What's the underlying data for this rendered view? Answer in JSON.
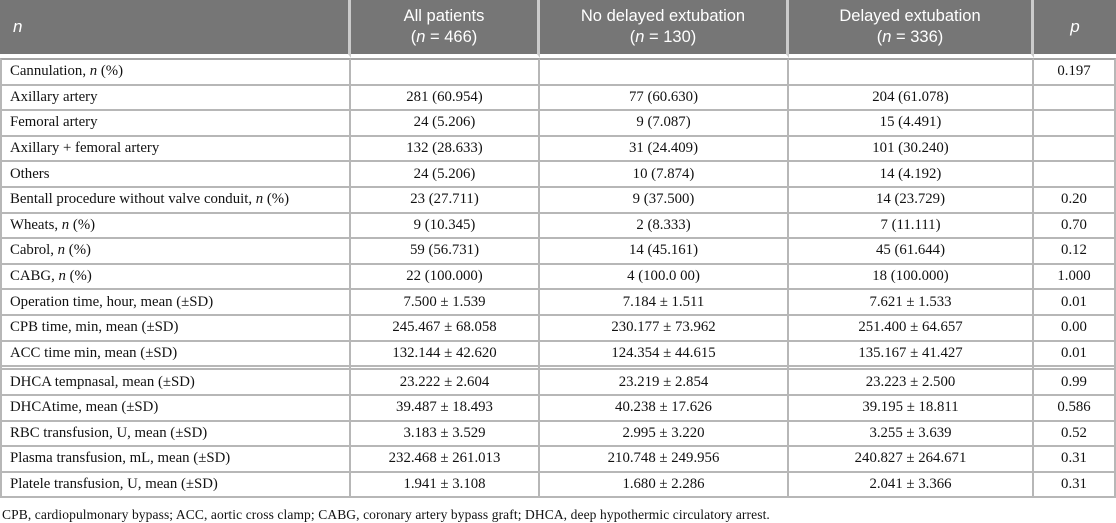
{
  "colors": {
    "header_bg": "#767676",
    "header_text": "#ffffff",
    "grid_line": "#b7b7b7"
  },
  "table": {
    "header": {
      "col_n": "n",
      "groups": [
        {
          "line1": "All patients",
          "n_pre": "(",
          "n_it": "n",
          "n_post": " = 466)"
        },
        {
          "line1": "No delayed extubation",
          "n_pre": "(",
          "n_it": "n",
          "n_post": " = 130)"
        },
        {
          "line1": "Delayed extubation",
          "n_pre": "(",
          "n_it": "n",
          "n_post": " = 336)"
        }
      ],
      "col_p": "p"
    },
    "rows": [
      {
        "label_pre": "Cannulation, ",
        "label_it": "n",
        "label_post": " (%)",
        "all": "",
        "no_delayed": "",
        "delayed": "",
        "p": "0.197"
      },
      {
        "label_pre": "Axillary artery",
        "label_it": "",
        "label_post": "",
        "all": "281 (60.954)",
        "no_delayed": "77 (60.630)",
        "delayed": "204 (61.078)",
        "p": ""
      },
      {
        "label_pre": "Femoral artery",
        "label_it": "",
        "label_post": "",
        "all": "24 (5.206)",
        "no_delayed": "9 (7.087)",
        "delayed": "15 (4.491)",
        "p": ""
      },
      {
        "label_pre": "Axillary + femoral artery",
        "label_it": "",
        "label_post": "",
        "all": "132 (28.633)",
        "no_delayed": "31 (24.409)",
        "delayed": "101 (30.240)",
        "p": ""
      },
      {
        "label_pre": "Others",
        "label_it": "",
        "label_post": "",
        "all": "24 (5.206)",
        "no_delayed": "10 (7.874)",
        "delayed": "14 (4.192)",
        "p": ""
      },
      {
        "label_pre": "Bentall procedure without valve conduit, ",
        "label_it": "n",
        "label_post": " (%)",
        "all": "23 (27.711)",
        "no_delayed": "9 (37.500)",
        "delayed": "14 (23.729)",
        "p": "0.20"
      },
      {
        "label_pre": "Wheats, ",
        "label_it": "n",
        "label_post": " (%)",
        "all": "9 (10.345)",
        "no_delayed": "2 (8.333)",
        "delayed": "7 (11.111)",
        "p": "0.70"
      },
      {
        "label_pre": "Cabrol, ",
        "label_it": "n",
        "label_post": " (%)",
        "all": "59 (56.731)",
        "no_delayed": "14 (45.161)",
        "delayed": "45 (61.644)",
        "p": "0.12"
      },
      {
        "label_pre": "CABG, ",
        "label_it": "n",
        "label_post": " (%)",
        "all": "22 (100.000)",
        "no_delayed": "4 (100.0 00)",
        "delayed": "18 (100.000)",
        "p": "1.000"
      },
      {
        "label_pre": "Operation time, hour, mean (±SD)",
        "label_it": "",
        "label_post": "",
        "all": "7.500 ± 1.539",
        "no_delayed": "7.184 ± 1.511",
        "delayed": "7.621 ± 1.533",
        "p": "0.01"
      },
      {
        "label_pre": "CPB time, min, mean (±SD)",
        "label_it": "",
        "label_post": "",
        "all": "245.467 ± 68.058",
        "no_delayed": "230.177 ± 73.962",
        "delayed": "251.400 ± 64.657",
        "p": "0.00"
      },
      {
        "label_pre": "ACC time min, mean (±SD)",
        "label_it": "",
        "label_post": "",
        "all": "132.144 ± 42.620",
        "no_delayed": "124.354 ± 44.615",
        "delayed": "135.167 ± 41.427",
        "p": "0.01",
        "divider_after": true
      },
      {
        "label_pre": "DHCA tempnasal, mean (±SD)",
        "label_it": "",
        "label_post": "",
        "all": "23.222 ± 2.604",
        "no_delayed": "23.219 ± 2.854",
        "delayed": "23.223 ± 2.500",
        "p": "0.99"
      },
      {
        "label_pre": "DHCAtime, mean (±SD)",
        "label_it": "",
        "label_post": "",
        "all": "39.487 ± 18.493",
        "no_delayed": "40.238 ± 17.626",
        "delayed": "39.195 ± 18.811",
        "p": "0.586"
      },
      {
        "label_pre": "RBC transfusion, U, mean (±SD)",
        "label_it": "",
        "label_post": "",
        "all": "3.183 ± 3.529",
        "no_delayed": "2.995 ± 3.220",
        "delayed": "3.255 ± 3.639",
        "p": "0.52"
      },
      {
        "label_pre": "Plasma transfusion, mL, mean (±SD)",
        "label_it": "",
        "label_post": "",
        "all": "232.468 ± 261.013",
        "no_delayed": "210.748 ± 249.956",
        "delayed": "240.827 ± 264.671",
        "p": "0.31"
      },
      {
        "label_pre": "Platele transfusion, U, mean (±SD)",
        "label_it": "",
        "label_post": "",
        "all": "1.941 ± 3.108",
        "no_delayed": "1.680 ± 2.286",
        "delayed": "2.041 ± 3.366",
        "p": "0.31"
      }
    ],
    "footnote": "CPB, cardiopulmonary bypass; ACC, aortic cross clamp; CABG, coronary artery bypass graft; DHCA, deep hypothermic circulatory arrest."
  }
}
